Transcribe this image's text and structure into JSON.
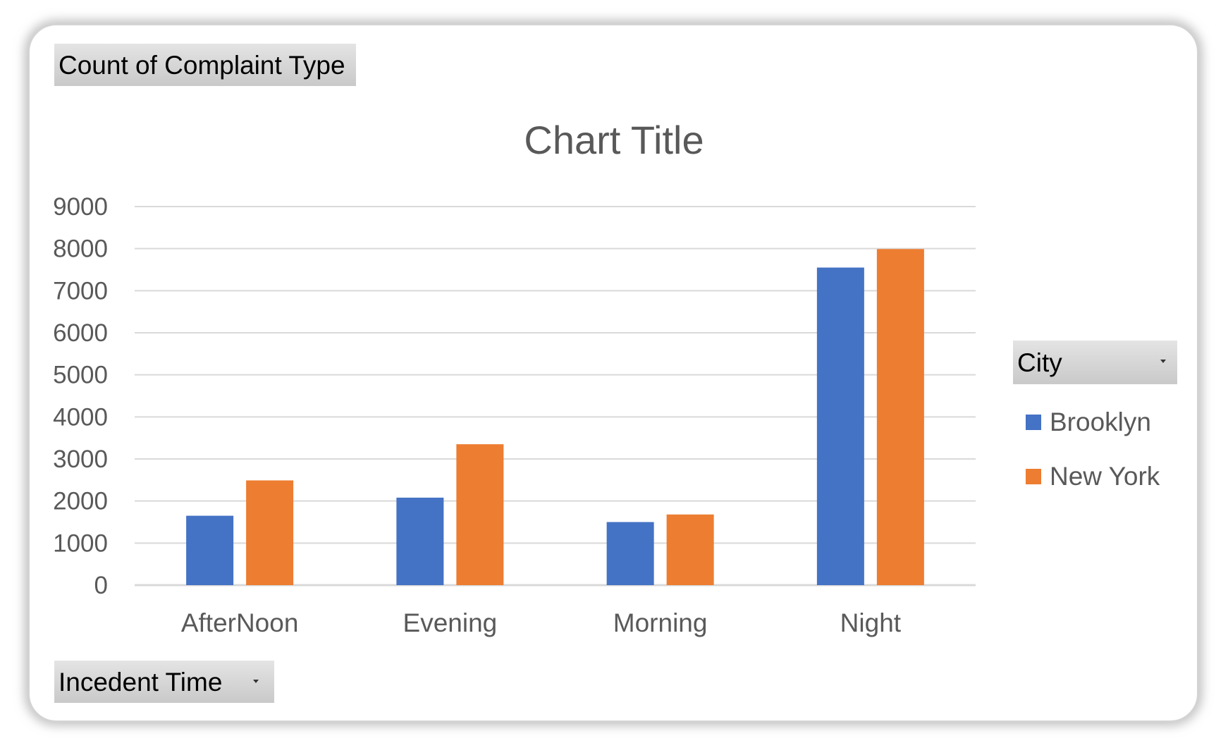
{
  "value_field_label": "Count of Complaint Type",
  "axis_field_label": "Incedent Time",
  "legend_field_label": "City",
  "chart_data": {
    "type": "bar",
    "title": "Chart Title",
    "xlabel": "",
    "ylabel": "",
    "categories": [
      "AfterNoon",
      "Evening",
      "Morning",
      "Night"
    ],
    "series": [
      {
        "name": "Brooklyn",
        "color": "#4472C4",
        "values": [
          1650,
          2080,
          1500,
          7550
        ]
      },
      {
        "name": "New York",
        "color": "#ED7D31",
        "values": [
          2490,
          3350,
          1680,
          7990
        ]
      }
    ],
    "ylim": [
      0,
      9000
    ],
    "yticks": [
      "0",
      "1000",
      "2000",
      "3000",
      "4000",
      "5000",
      "6000",
      "7000",
      "8000",
      "9000"
    ],
    "grid": true,
    "legend_position": "right"
  }
}
